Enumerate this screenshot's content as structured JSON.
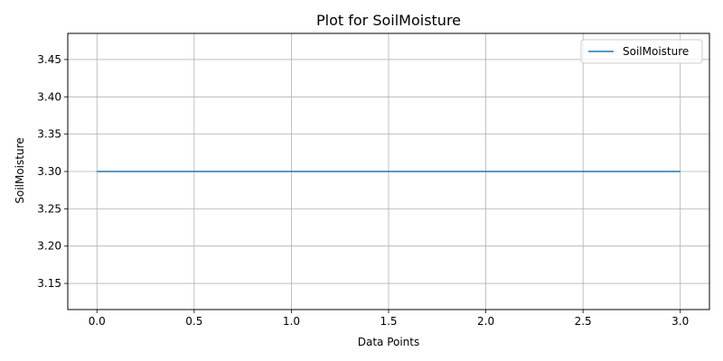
{
  "chart_data": {
    "type": "line",
    "title": "Plot for SoilMoisture",
    "xlabel": "Data Points",
    "ylabel": "SoilMoisture",
    "x": [
      0,
      1,
      2,
      3
    ],
    "series": [
      {
        "name": "SoilMoisture",
        "values": [
          3.3,
          3.3,
          3.3,
          3.3
        ],
        "color": "#1f77b4"
      }
    ],
    "xlim": [
      -0.15,
      3.15
    ],
    "ylim": [
      3.115,
      3.485
    ],
    "xticks": [
      "0.0",
      "0.5",
      "1.0",
      "1.5",
      "2.0",
      "2.5",
      "3.0"
    ],
    "xtick_values": [
      0,
      0.5,
      1,
      1.5,
      2,
      2.5,
      3
    ],
    "yticks": [
      "3.15",
      "3.20",
      "3.25",
      "3.30",
      "3.35",
      "3.40",
      "3.45"
    ],
    "ytick_values": [
      3.15,
      3.2,
      3.25,
      3.3,
      3.35,
      3.4,
      3.45
    ],
    "grid": true,
    "legend_position": "top-right",
    "grid_color": "#b0b0b0",
    "axes_color": "#000000"
  }
}
